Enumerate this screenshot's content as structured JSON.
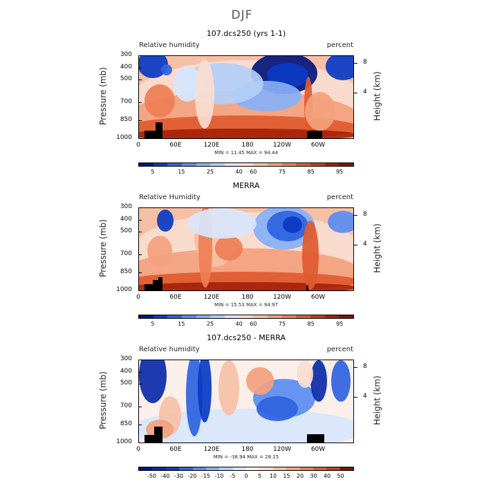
{
  "title": "DJF",
  "x_ticks": [
    "0",
    "60E",
    "120E",
    "180",
    "120W",
    "60W"
  ],
  "p_ticks": [
    "300",
    "400",
    "500",
    "700",
    "850",
    "1000"
  ],
  "h_ticks": [
    "8",
    "4"
  ],
  "ylabel_left": "Pressure (mb)",
  "ylabel_right": "Height (km)",
  "panels": [
    {
      "title": "107.dcs250 (yrs 1-1)",
      "sub_left": "Relative humidity",
      "sub_right": "percent",
      "minmax": "MIN =   11.45   MAX =   94.44",
      "cbar_labels": [
        "5",
        "15",
        "25",
        "40",
        "60",
        "75",
        "85",
        "95"
      ],
      "cbar_colors": [
        "#04167d",
        "#0a39c4",
        "#2e63e0",
        "#5a8cf0",
        "#87b0f6",
        "#b3cff9",
        "#d8e6fb",
        "#f8ddd0",
        "#f6c0a6",
        "#f3a17d",
        "#ee7e55",
        "#e05a2f",
        "#c93a17",
        "#a5230b",
        "#7e1505"
      ]
    },
    {
      "title": "MERRA",
      "sub_left": "Relative Humidity",
      "sub_right": "percent",
      "minmax": "MIN =   15.53   MAX =   94.97",
      "cbar_labels": [
        "5",
        "15",
        "25",
        "40",
        "60",
        "75",
        "85",
        "95"
      ],
      "cbar_colors": [
        "#04167d",
        "#0a39c4",
        "#2e63e0",
        "#5a8cf0",
        "#87b0f6",
        "#b3cff9",
        "#d8e6fb",
        "#f8ddd0",
        "#f6c0a6",
        "#f3a17d",
        "#ee7e55",
        "#e05a2f",
        "#c93a17",
        "#a5230b",
        "#7e1505"
      ]
    },
    {
      "title": "107.dcs250 - MERRA",
      "sub_left": "Relative humidity",
      "sub_right": "percent",
      "minmax": "MIN =  -38.94   MAX =   28.15",
      "cbar_labels": [
        "-50",
        "-40",
        "-30",
        "-20",
        "-15",
        "-10",
        "-5",
        "0",
        "5",
        "10",
        "15",
        "20",
        "30",
        "40",
        "50"
      ],
      "cbar_colors": [
        "#04167d",
        "#0a2aa8",
        "#0a39c4",
        "#2e63e0",
        "#5a8cf0",
        "#87b0f6",
        "#b3cff9",
        "#d8e6fb",
        "#fbefe8",
        "#f8ddd0",
        "#f6c0a6",
        "#f3a17d",
        "#ee7e55",
        "#e05a2f",
        "#c93a17",
        "#7e1505"
      ]
    }
  ],
  "chart_data": [
    {
      "type": "heatmap",
      "title": "107.dcs250 (yrs 1-1)",
      "subtitle_left": "Relative humidity",
      "subtitle_right": "percent",
      "xlabel": "",
      "ylabel": "Pressure (mb)",
      "ylabel_right": "Height (km)",
      "x_ticks": [
        "0",
        "60E",
        "120E",
        "180",
        "120W",
        "60W"
      ],
      "y_ticks": [
        300,
        400,
        500,
        700,
        850,
        1000
      ],
      "min": 11.45,
      "max": 94.44,
      "levels": [
        5,
        15,
        25,
        40,
        60,
        75,
        85,
        95
      ]
    },
    {
      "type": "heatmap",
      "title": "MERRA",
      "subtitle_left": "Relative Humidity",
      "subtitle_right": "percent",
      "xlabel": "",
      "ylabel": "Pressure (mb)",
      "ylabel_right": "Height (km)",
      "x_ticks": [
        "0",
        "60E",
        "120E",
        "180",
        "120W",
        "60W"
      ],
      "y_ticks": [
        300,
        400,
        500,
        700,
        850,
        1000
      ],
      "min": 15.53,
      "max": 94.97,
      "levels": [
        5,
        15,
        25,
        40,
        60,
        75,
        85,
        95
      ]
    },
    {
      "type": "heatmap",
      "title": "107.dcs250 - MERRA",
      "subtitle_left": "Relative humidity",
      "subtitle_right": "percent",
      "xlabel": "",
      "ylabel": "Pressure (mb)",
      "ylabel_right": "Height (km)",
      "x_ticks": [
        "0",
        "60E",
        "120E",
        "180",
        "120W",
        "60W"
      ],
      "y_ticks": [
        300,
        400,
        500,
        700,
        850,
        1000
      ],
      "min": -38.94,
      "max": 28.15,
      "levels": [
        -50,
        -40,
        -30,
        -20,
        -15,
        -10,
        -5,
        0,
        5,
        10,
        15,
        20,
        30,
        40,
        50
      ]
    }
  ]
}
